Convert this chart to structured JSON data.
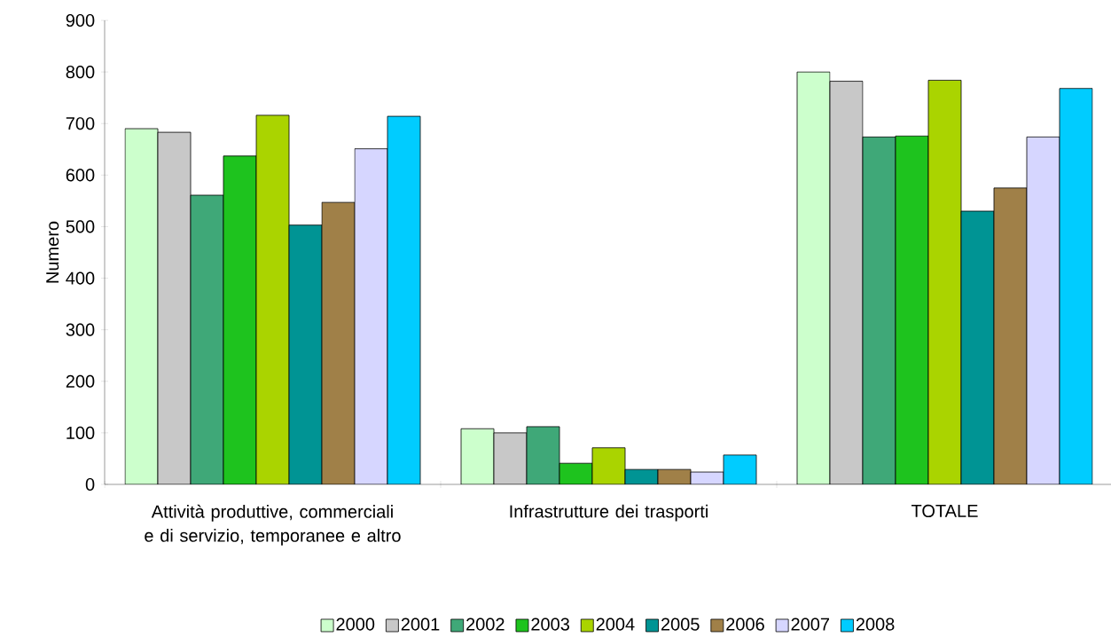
{
  "chart_data": {
    "type": "bar",
    "ylabel": "Numero",
    "categories": [
      "Attività produttive, commerciali e di servizio, temporanee e altro",
      "Infrastrutture dei trasporti",
      "TOTALE"
    ],
    "ylim": [
      0,
      900
    ],
    "yticks": [
      0,
      100,
      200,
      300,
      400,
      500,
      600,
      700,
      800,
      900
    ],
    "legend": "bottom",
    "series": [
      {
        "name": "2000",
        "color": "#ccffcc",
        "values": [
          690,
          108,
          800
        ]
      },
      {
        "name": "2001",
        "color": "#c8c8c8",
        "values": [
          683,
          100,
          782
        ]
      },
      {
        "name": "2002",
        "color": "#3fa878",
        "values": [
          561,
          112,
          674
        ]
      },
      {
        "name": "2003",
        "color": "#1ec31e",
        "values": [
          637,
          41,
          676
        ]
      },
      {
        "name": "2004",
        "color": "#aad400",
        "values": [
          716,
          71,
          784
        ]
      },
      {
        "name": "2005",
        "color": "#009494",
        "values": [
          503,
          29,
          530
        ]
      },
      {
        "name": "2006",
        "color": "#a08048",
        "values": [
          547,
          29,
          575
        ]
      },
      {
        "name": "2007",
        "color": "#d6d6ff",
        "values": [
          651,
          24,
          674
        ]
      },
      {
        "name": "2008",
        "color": "#00ccff",
        "values": [
          714,
          57,
          768
        ]
      }
    ]
  }
}
